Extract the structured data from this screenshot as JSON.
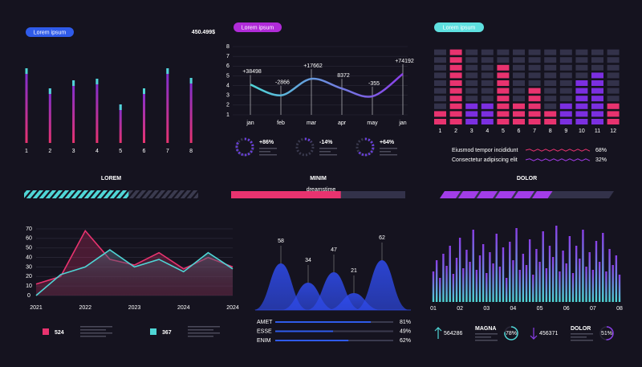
{
  "watermark": "dreamstime",
  "chart_data": [
    {
      "type": "bar",
      "tag": "Lorem ipsum",
      "tag_color": "#2f5bea",
      "headline": "450.499$",
      "categories": [
        "1",
        "2",
        "3",
        "4",
        "5",
        "6",
        "7",
        "8"
      ],
      "values": [
        93,
        68,
        78,
        80,
        48,
        68,
        93,
        81
      ],
      "color": "#e8336f",
      "cap_color": "#4fd6d6"
    },
    {
      "type": "line",
      "tag": "Lorem ipsum",
      "tag_color": "#b02bd8",
      "categories": [
        "jan",
        "feb",
        "mar",
        "apr",
        "may",
        "jan"
      ],
      "values": [
        4.1,
        3.0,
        4.7,
        3.7,
        2.9,
        5.2
      ],
      "annotations": [
        "+38498",
        "-2866",
        "+17662",
        "8372",
        "-355",
        "+74192"
      ],
      "ylim": [
        1,
        8
      ],
      "yticks": [
        1,
        2,
        3,
        4,
        5,
        6,
        7,
        8
      ],
      "grid": true,
      "colors": [
        "#4fd6d6",
        "#8a3ee8"
      ],
      "gauges": {
        "values": [
          86,
          -14,
          64
        ],
        "value_labels": [
          "+86%",
          "-14%",
          "+64%"
        ],
        "color": "#6b3fe0"
      }
    },
    {
      "type": "segmented-bar",
      "tag": "Lorem ipsum",
      "tag_color": "#5ee0e0",
      "categories": [
        "1",
        "2",
        "3",
        "4",
        "5",
        "6",
        "7",
        "8",
        "9",
        "10",
        "11",
        "12"
      ],
      "values": [
        2,
        10,
        3,
        3,
        8,
        3,
        5,
        2,
        3,
        6,
        7,
        3
      ],
      "segments": 10,
      "colors": [
        "#e8336f",
        "#e8336f",
        "#7b2fe0",
        "#7b2fe0",
        "#e8336f",
        "#e8336f",
        "#e8336f",
        "#e8336f",
        "#7b2fe0",
        "#7b2fe0",
        "#7b2fe0",
        "#e8336f"
      ],
      "legend": [
        {
          "name": "Eiusmod tempor incididunt",
          "value": 68,
          "label": "68%",
          "color": "#e8336f"
        },
        {
          "name": "Consectetur adipiscing elit",
          "value": 32,
          "label": "32%",
          "color": "#a23de8"
        }
      ]
    },
    {
      "type": "progress",
      "categories": [
        "LOREM",
        "MINIM",
        "DOLOR"
      ],
      "values": [
        60,
        63,
        62
      ],
      "styles": [
        "striped",
        "solid",
        "segmented"
      ],
      "colors": [
        "#4fd6d6",
        "#e8336f",
        "#a23de8"
      ]
    },
    {
      "type": "area",
      "categories": [
        "2021",
        null,
        "2022",
        null,
        "2023",
        null,
        "2024",
        null,
        "2024"
      ],
      "ylim": [
        0,
        70
      ],
      "yticks": [
        0,
        10,
        20,
        30,
        40,
        50,
        60,
        70
      ],
      "grid": true,
      "series": [
        {
          "color": "#e8336f",
          "values": [
            12,
            20,
            68,
            38,
            32,
            45,
            28,
            40,
            30
          ]
        },
        {
          "color": "#4fd6d6",
          "values": [
            0,
            22,
            30,
            48,
            30,
            38,
            25,
            45,
            28
          ]
        }
      ],
      "totals": {
        "values": [
          524,
          367
        ],
        "colors": [
          "#e8336f",
          "#4fd6d6"
        ]
      }
    },
    {
      "type": "mountain",
      "values": [
        58,
        34,
        47,
        21,
        62
      ],
      "color": "#2f4cf0"
    },
    {
      "type": "hbar",
      "categories": [
        "AMET",
        "ESSE",
        "ENIM"
      ],
      "values": [
        81,
        49,
        62
      ],
      "value_labels": [
        "81%",
        "49%",
        "62%"
      ],
      "color": "#2f5bea"
    },
    {
      "type": "dense-bar",
      "categories": [
        "01",
        null,
        null,
        null,
        null,
        null,
        null,
        null,
        "02",
        null,
        null,
        null,
        null,
        null,
        null,
        null,
        "03",
        null,
        null,
        null,
        null,
        null,
        null,
        null,
        "04",
        null,
        null,
        null,
        null,
        null,
        null,
        null,
        "05",
        null,
        null,
        null,
        null,
        null,
        null,
        null,
        "06",
        null,
        null,
        null,
        null,
        null,
        null,
        null,
        "07",
        null,
        null,
        null,
        null,
        null,
        null,
        null,
        "08"
      ],
      "values": [
        38,
        52,
        30,
        60,
        45,
        70,
        35,
        55,
        80,
        42,
        65,
        50,
        90,
        40,
        58,
        72,
        36,
        62,
        48,
        85,
        44,
        68,
        30,
        75,
        52,
        92,
        40,
        60,
        46,
        78,
        34,
        66,
        50,
        88,
        42,
        70,
        56,
        95,
        38,
        64,
        48,
        82,
        36,
        70,
        54,
        90,
        44,
        62,
        40,
        76,
        50,
        86,
        38,
        66,
        46,
        58,
        34
      ],
      "colors": [
        "#4fd6d6",
        "#8a3ee8"
      ],
      "kpis": [
        {
          "value": 564286,
          "color": "#4fd6d6",
          "direction": "up",
          "label": "MAGNA",
          "gauge": 78,
          "gauge_label": "78%"
        },
        {
          "value": 456371,
          "color": "#8a3ee8",
          "direction": "down",
          "label": "DOLOR",
          "gauge": 51,
          "gauge_label": "51%"
        }
      ]
    }
  ]
}
